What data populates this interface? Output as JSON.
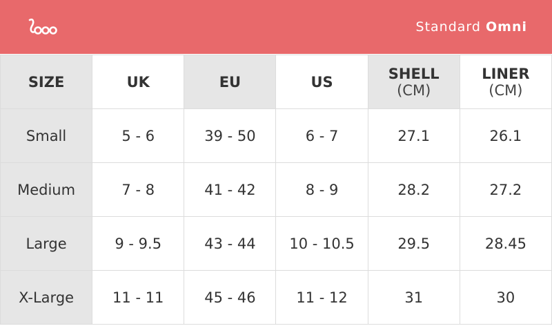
{
  "header": {
    "product_line": "Standard",
    "model": "Omni"
  },
  "table": {
    "columns": [
      {
        "title": "SIZE"
      },
      {
        "title": "UK"
      },
      {
        "title": "EU"
      },
      {
        "title": "US"
      },
      {
        "title": "SHELL",
        "unit": "(CM)"
      },
      {
        "title": "LINER",
        "unit": "(CM)"
      }
    ],
    "rows": [
      [
        "Small",
        "5 - 6",
        "39 - 50",
        "6 - 7",
        "27.1",
        "26.1"
      ],
      [
        "Medium",
        "7 - 8",
        "41 - 42",
        "8 - 9",
        "28.2",
        "27.2"
      ],
      [
        "Large",
        "9 - 9.5",
        "43 - 44",
        "10 - 10.5",
        "29.5",
        "28.45"
      ],
      [
        "X-Large",
        "11 - 11",
        "45 - 46",
        "11 - 12",
        "31",
        "30"
      ]
    ]
  }
}
